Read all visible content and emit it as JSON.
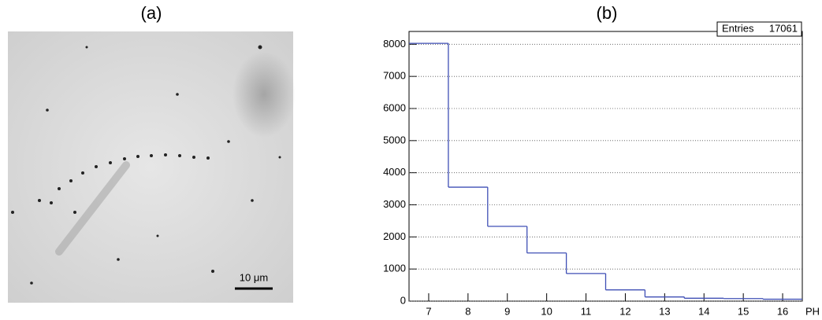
{
  "panel_a": {
    "label": "(a)",
    "scale_bar": "10 μm"
  },
  "chart_data": {
    "type": "histogram",
    "title": "(b)",
    "bins": [
      6.5,
      7.5,
      8.5,
      9.5,
      10.5,
      11.5,
      12.5,
      13.5,
      14.5,
      15.5,
      16.5
    ],
    "values": [
      8030,
      3550,
      2330,
      1500,
      860,
      350,
      130,
      90,
      80,
      60
    ],
    "color": "#3f4fb5",
    "xlabel": "PH",
    "stats": {
      "label": "Entries",
      "value": 17061
    },
    "xlim": [
      6.5,
      16.5
    ],
    "ylim": [
      0,
      8400
    ],
    "xticks": [
      7,
      8,
      9,
      10,
      11,
      12,
      13,
      14,
      15,
      16
    ],
    "yticks": [
      0,
      1000,
      2000,
      3000,
      4000,
      5000,
      6000,
      7000,
      8000
    ],
    "grid": true
  }
}
